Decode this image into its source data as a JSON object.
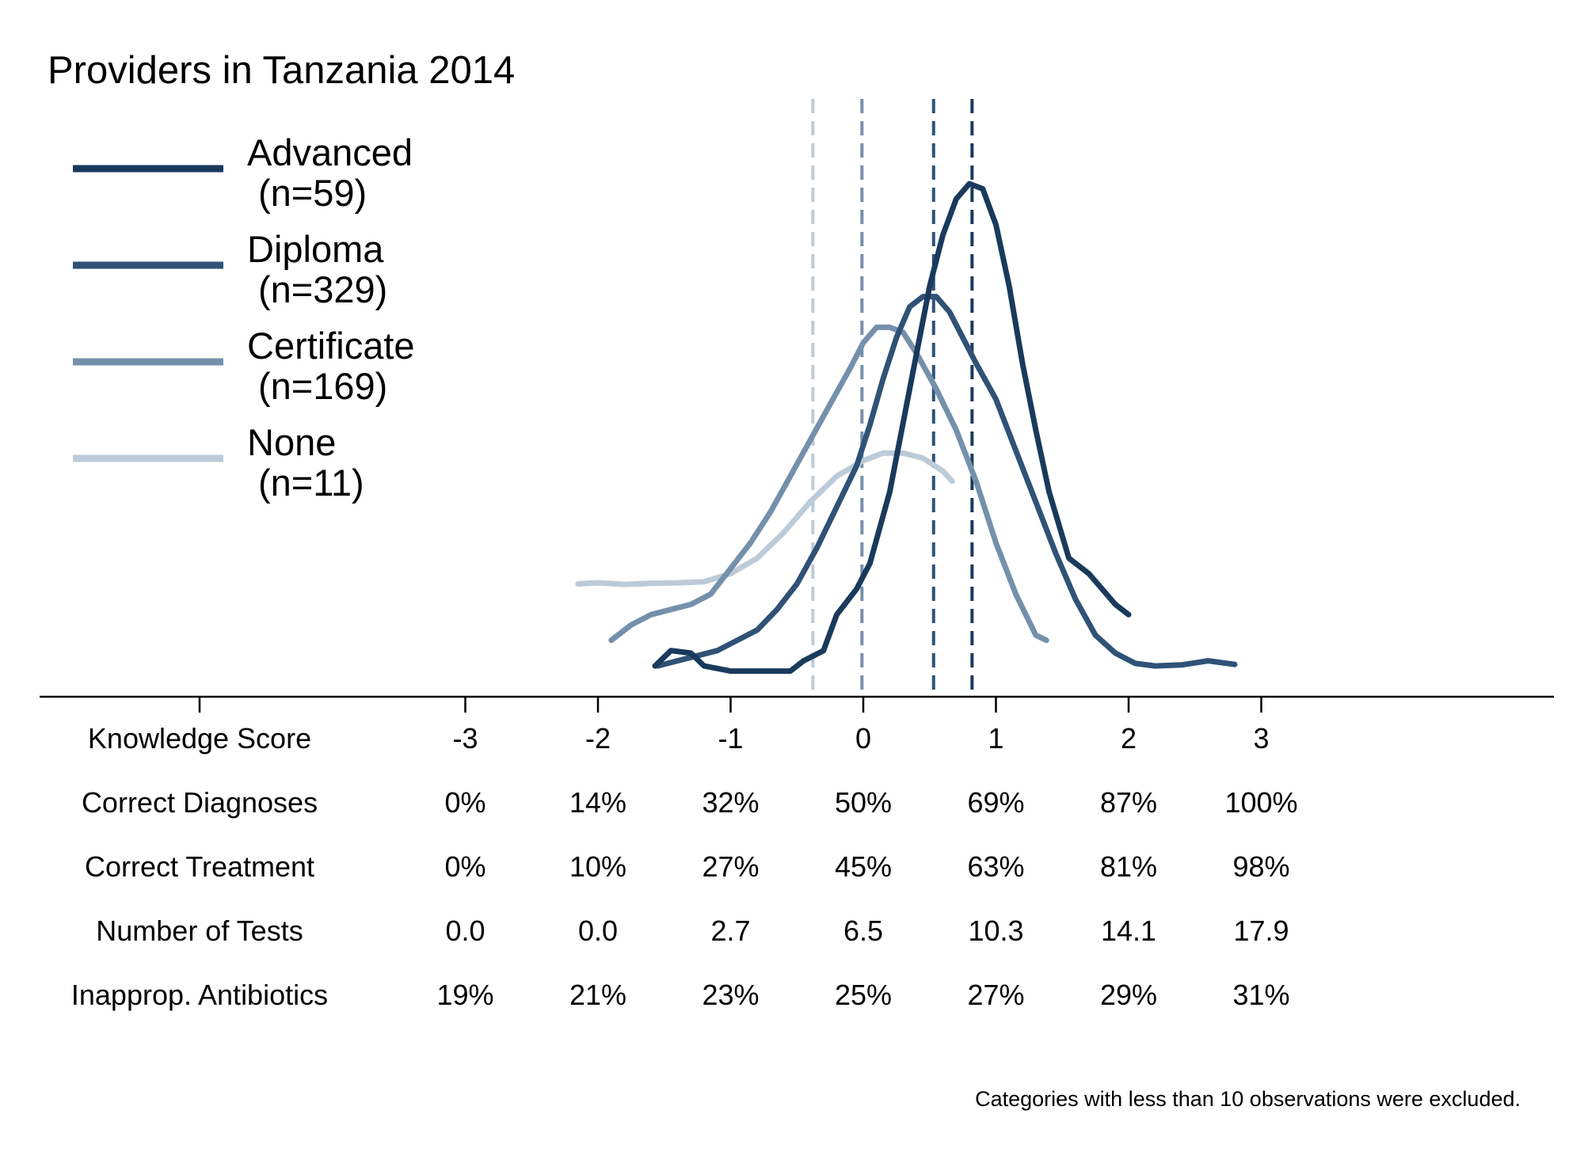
{
  "chart_data": {
    "type": "line",
    "title": "Providers in Tanzania 2014",
    "x_axis": {
      "label": "Knowledge Score",
      "ticks": [
        -3,
        -2,
        -1,
        0,
        1,
        2,
        3
      ],
      "tick_labels": [
        "-3",
        "-2",
        "-1",
        "0",
        "1",
        "2",
        "3"
      ],
      "xlim": [
        -5.0,
        6.4
      ]
    },
    "y_axis": {
      "shown": false,
      "ylim": [
        0,
        1.0
      ]
    },
    "grid": false,
    "legend": {
      "placement": "top-left"
    },
    "series": [
      {
        "name": "Advanced",
        "n_label": "(n=59)",
        "color": "#1a3a5c",
        "mean": 0.82,
        "points": [
          [
            -1.57,
            0.06
          ],
          [
            -1.45,
            0.09
          ],
          [
            -1.3,
            0.085
          ],
          [
            -1.2,
            0.06
          ],
          [
            -1.0,
            0.05
          ],
          [
            -0.8,
            0.05
          ],
          [
            -0.55,
            0.05
          ],
          [
            -0.45,
            0.07
          ],
          [
            -0.3,
            0.09
          ],
          [
            -0.2,
            0.16
          ],
          [
            -0.05,
            0.21
          ],
          [
            0.05,
            0.26
          ],
          [
            0.2,
            0.4
          ],
          [
            0.35,
            0.6
          ],
          [
            0.5,
            0.8
          ],
          [
            0.6,
            0.9
          ],
          [
            0.7,
            0.97
          ],
          [
            0.8,
            1.0
          ],
          [
            0.9,
            0.99
          ],
          [
            1.0,
            0.92
          ],
          [
            1.1,
            0.8
          ],
          [
            1.2,
            0.65
          ],
          [
            1.3,
            0.52
          ],
          [
            1.4,
            0.4
          ],
          [
            1.55,
            0.27
          ],
          [
            1.7,
            0.24
          ],
          [
            1.8,
            0.21
          ],
          [
            1.9,
            0.18
          ],
          [
            2.0,
            0.16
          ]
        ]
      },
      {
        "name": "Diploma",
        "n_label": "(n=329)",
        "color": "#2f5276",
        "mean": 0.53,
        "points": [
          [
            -1.55,
            0.06
          ],
          [
            -1.4,
            0.07
          ],
          [
            -1.25,
            0.08
          ],
          [
            -1.1,
            0.09
          ],
          [
            -0.95,
            0.11
          ],
          [
            -0.8,
            0.13
          ],
          [
            -0.65,
            0.17
          ],
          [
            -0.5,
            0.22
          ],
          [
            -0.35,
            0.29
          ],
          [
            -0.2,
            0.37
          ],
          [
            -0.05,
            0.45
          ],
          [
            0.05,
            0.53
          ],
          [
            0.15,
            0.62
          ],
          [
            0.25,
            0.7
          ],
          [
            0.35,
            0.76
          ],
          [
            0.45,
            0.78
          ],
          [
            0.55,
            0.78
          ],
          [
            0.65,
            0.75
          ],
          [
            0.75,
            0.7
          ],
          [
            0.85,
            0.65
          ],
          [
            1.0,
            0.58
          ],
          [
            1.15,
            0.48
          ],
          [
            1.3,
            0.38
          ],
          [
            1.45,
            0.28
          ],
          [
            1.6,
            0.19
          ],
          [
            1.75,
            0.12
          ],
          [
            1.9,
            0.085
          ],
          [
            2.05,
            0.065
          ],
          [
            2.2,
            0.06
          ],
          [
            2.4,
            0.062
          ],
          [
            2.6,
            0.07
          ],
          [
            2.8,
            0.063
          ]
        ]
      },
      {
        "name": "Certificate",
        "n_label": "(n=169)",
        "color": "#7590ab",
        "mean": -0.01,
        "points": [
          [
            -1.9,
            0.11
          ],
          [
            -1.75,
            0.14
          ],
          [
            -1.6,
            0.16
          ],
          [
            -1.45,
            0.17
          ],
          [
            -1.3,
            0.18
          ],
          [
            -1.15,
            0.2
          ],
          [
            -1.0,
            0.25
          ],
          [
            -0.85,
            0.3
          ],
          [
            -0.7,
            0.36
          ],
          [
            -0.55,
            0.43
          ],
          [
            -0.4,
            0.5
          ],
          [
            -0.25,
            0.57
          ],
          [
            -0.1,
            0.64
          ],
          [
            0.0,
            0.69
          ],
          [
            0.1,
            0.72
          ],
          [
            0.2,
            0.72
          ],
          [
            0.3,
            0.71
          ],
          [
            0.4,
            0.67
          ],
          [
            0.55,
            0.6
          ],
          [
            0.7,
            0.52
          ],
          [
            0.85,
            0.42
          ],
          [
            1.0,
            0.3
          ],
          [
            1.15,
            0.2
          ],
          [
            1.3,
            0.12
          ],
          [
            1.38,
            0.11
          ]
        ]
      },
      {
        "name": "None",
        "n_label": "(n=11)",
        "color": "#bccbd8",
        "mean": -0.38,
        "points": [
          [
            -2.15,
            0.22
          ],
          [
            -2.0,
            0.222
          ],
          [
            -1.8,
            0.219
          ],
          [
            -1.6,
            0.221
          ],
          [
            -1.4,
            0.222
          ],
          [
            -1.2,
            0.224
          ],
          [
            -1.0,
            0.24
          ],
          [
            -0.8,
            0.27
          ],
          [
            -0.6,
            0.32
          ],
          [
            -0.4,
            0.38
          ],
          [
            -0.2,
            0.43
          ],
          [
            0.0,
            0.46
          ],
          [
            0.15,
            0.475
          ],
          [
            0.3,
            0.475
          ],
          [
            0.45,
            0.465
          ],
          [
            0.6,
            0.44
          ],
          [
            0.67,
            0.42
          ]
        ]
      }
    ],
    "table": {
      "rows": [
        {
          "label": "Correct Diagnoses",
          "values": [
            "0%",
            "14%",
            "32%",
            "50%",
            "69%",
            "87%",
            "100%"
          ]
        },
        {
          "label": "Correct Treatment",
          "values": [
            "0%",
            "10%",
            "27%",
            "45%",
            "63%",
            "81%",
            "98%"
          ]
        },
        {
          "label": "Number of Tests",
          "values": [
            "0.0",
            "0.0",
            "2.7",
            "6.5",
            "10.3",
            "14.1",
            "17.9"
          ]
        },
        {
          "label": "Inapprop. Antibiotics",
          "values": [
            "19%",
            "21%",
            "23%",
            "25%",
            "27%",
            "29%",
            "31%"
          ]
        }
      ]
    },
    "footnote": "Categories with less than 10 observations were excluded."
  }
}
